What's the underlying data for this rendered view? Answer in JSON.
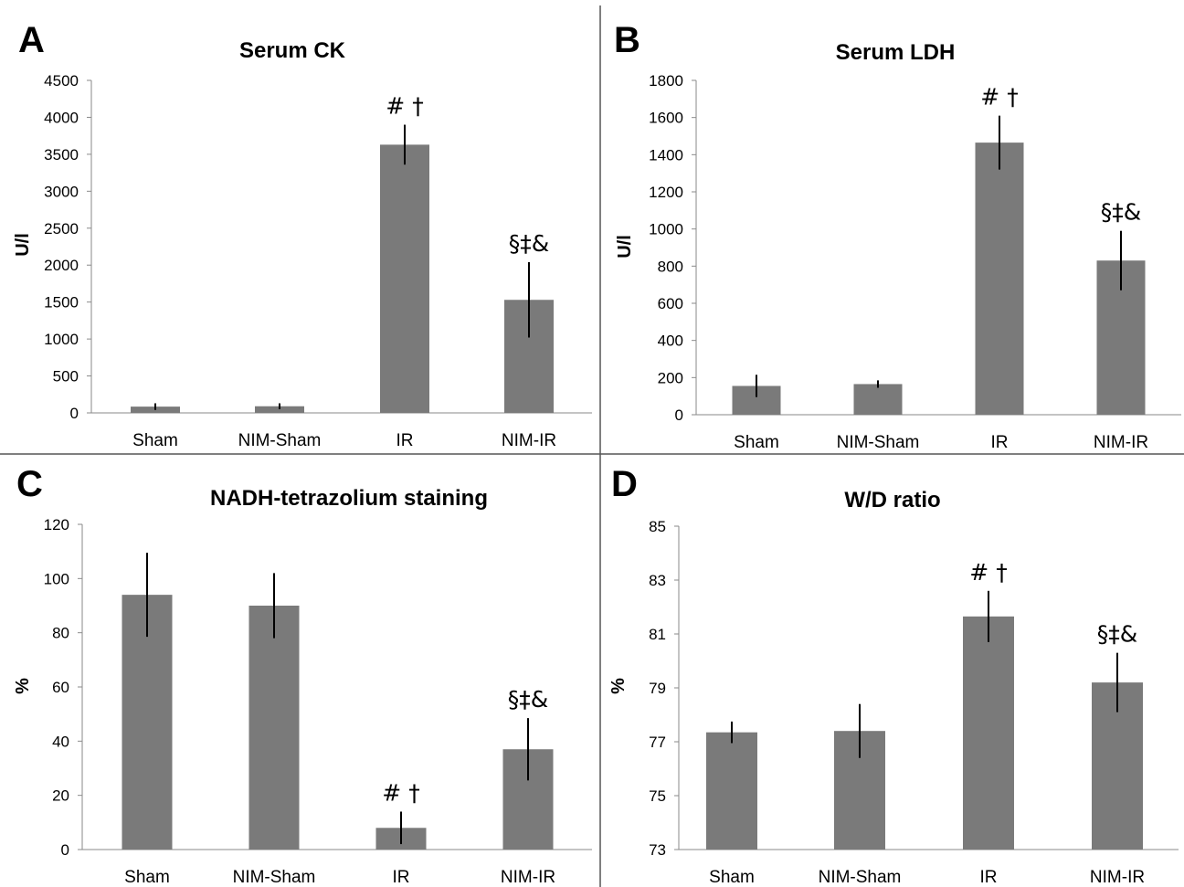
{
  "chart_data": [
    {
      "type": "bar",
      "panel": "A",
      "title": "Serum CK",
      "ylabel": "U/l",
      "xlabel": "",
      "ylim": [
        0,
        4500
      ],
      "yticks": [
        0,
        500,
        1000,
        1500,
        2000,
        2500,
        3000,
        3500,
        4000,
        4500
      ],
      "categories": [
        "Sham",
        "NIM-Sham",
        "IR",
        "NIM-IR"
      ],
      "values": [
        85,
        90,
        3630,
        1530
      ],
      "errors": [
        45,
        40,
        270,
        510
      ],
      "annotations": [
        "",
        "",
        "# †",
        "§‡&"
      ],
      "bar_color": "#7a7a7a"
    },
    {
      "type": "bar",
      "panel": "B",
      "title": "Serum LDH",
      "ylabel": "U/l",
      "xlabel": "",
      "ylim": [
        0,
        1800
      ],
      "yticks": [
        0,
        200,
        400,
        600,
        800,
        1000,
        1200,
        1400,
        1600,
        1800
      ],
      "categories": [
        "Sham",
        "NIM-Sham",
        "IR",
        "NIM-IR"
      ],
      "values": [
        155,
        165,
        1465,
        830
      ],
      "errors": [
        60,
        20,
        145,
        160
      ],
      "annotations": [
        "",
        "",
        "# †",
        "§‡&"
      ],
      "bar_color": "#7a7a7a"
    },
    {
      "type": "bar",
      "panel": "C",
      "title": "NADH-tetrazolium staining",
      "ylabel": "%",
      "xlabel": "",
      "ylim": [
        0,
        120
      ],
      "yticks": [
        0,
        20,
        40,
        60,
        80,
        100,
        120
      ],
      "categories": [
        "Sham",
        "NIM-Sham",
        "IR",
        "NIM-IR"
      ],
      "values": [
        94,
        90,
        8,
        37
      ],
      "errors": [
        15.5,
        12,
        6,
        11.5
      ],
      "annotations": [
        "",
        "",
        "# †",
        "§‡&"
      ],
      "bar_color": "#7a7a7a"
    },
    {
      "type": "bar",
      "panel": "D",
      "title": "W/D ratio",
      "ylabel": "%",
      "xlabel": "",
      "ylim": [
        73,
        85
      ],
      "yticks": [
        73,
        75,
        77,
        79,
        81,
        83,
        85
      ],
      "categories": [
        "Sham",
        "NIM-Sham",
        "IR",
        "NIM-IR"
      ],
      "values": [
        77.35,
        77.4,
        81.65,
        79.2
      ],
      "errors": [
        0.4,
        1.0,
        0.95,
        1.1
      ],
      "annotations": [
        "",
        "",
        "# †",
        "§‡&"
      ],
      "bar_color": "#7a7a7a"
    }
  ]
}
